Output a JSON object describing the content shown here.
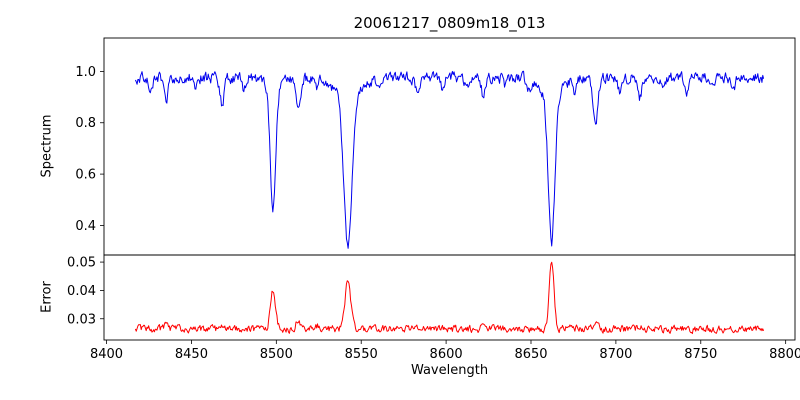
{
  "chart_data": {
    "type": "line",
    "title": "20061217_0809m18_013",
    "xlabel": "Wavelength",
    "background": "#ffffff",
    "xlim": [
      8398.5,
      8805.5
    ],
    "x_range": [
      8417,
      8787
    ],
    "n_points": 760,
    "grid": false,
    "legend": "none",
    "x_ticks": [
      {
        "value": 8400,
        "label": "8400"
      },
      {
        "value": 8450,
        "label": "8450"
      },
      {
        "value": 8500,
        "label": "8500"
      },
      {
        "value": 8550,
        "label": "8550"
      },
      {
        "value": 8600,
        "label": "8600"
      },
      {
        "value": 8650,
        "label": "8650"
      },
      {
        "value": 8700,
        "label": "8700"
      },
      {
        "value": 8750,
        "label": "8750"
      },
      {
        "value": 8800,
        "label": "8800"
      }
    ],
    "panels": [
      {
        "name": "spectrum",
        "ylabel": "Spectrum",
        "color": "#0000ee",
        "ylim": [
          0.285,
          1.13
        ],
        "y_ticks": [
          {
            "value": 0.4,
            "label": "0.4"
          },
          {
            "value": 0.6,
            "label": "0.6"
          },
          {
            "value": 0.8,
            "label": "0.8"
          },
          {
            "value": 1.0,
            "label": "1.0"
          }
        ],
        "baseline": 0.975,
        "noise_amplitude": 0.038,
        "seed": 11,
        "absorption_lines": [
          {
            "center": 8498.0,
            "depth": 0.46,
            "sigma": 1.6
          },
          {
            "center": 8498.0,
            "depth": 0.04,
            "sigma": 5.0
          },
          {
            "center": 8542.1,
            "depth": 0.57,
            "sigma": 2.3
          },
          {
            "center": 8542.1,
            "depth": 0.08,
            "sigma": 7.0
          },
          {
            "center": 8662.1,
            "depth": 0.57,
            "sigma": 1.9
          },
          {
            "center": 8662.1,
            "depth": 0.07,
            "sigma": 6.0
          },
          {
            "center": 8426,
            "depth": 0.06,
            "sigma": 1.2
          },
          {
            "center": 8435,
            "depth": 0.09,
            "sigma": 1.2
          },
          {
            "center": 8452,
            "depth": 0.04,
            "sigma": 1.0
          },
          {
            "center": 8468,
            "depth": 0.1,
            "sigma": 1.3
          },
          {
            "center": 8481,
            "depth": 0.05,
            "sigma": 1.0
          },
          {
            "center": 8513,
            "depth": 0.11,
            "sigma": 1.3
          },
          {
            "center": 8524,
            "depth": 0.05,
            "sigma": 1.0
          },
          {
            "center": 8560,
            "depth": 0.04,
            "sigma": 1.0
          },
          {
            "center": 8583,
            "depth": 0.05,
            "sigma": 1.2
          },
          {
            "center": 8598,
            "depth": 0.05,
            "sigma": 1.0
          },
          {
            "center": 8612,
            "depth": 0.04,
            "sigma": 1.0
          },
          {
            "center": 8622,
            "depth": 0.07,
            "sigma": 1.2
          },
          {
            "center": 8635,
            "depth": 0.04,
            "sigma": 1.0
          },
          {
            "center": 8649,
            "depth": 0.04,
            "sigma": 1.0
          },
          {
            "center": 8676,
            "depth": 0.05,
            "sigma": 1.0
          },
          {
            "center": 8688,
            "depth": 0.19,
            "sigma": 1.4
          },
          {
            "center": 8702,
            "depth": 0.05,
            "sigma": 1.0
          },
          {
            "center": 8714,
            "depth": 0.08,
            "sigma": 1.2
          },
          {
            "center": 8728,
            "depth": 0.04,
            "sigma": 1.0
          },
          {
            "center": 8742,
            "depth": 0.05,
            "sigma": 1.1
          },
          {
            "center": 8758,
            "depth": 0.04,
            "sigma": 1.0
          },
          {
            "center": 8769,
            "depth": 0.05,
            "sigma": 1.0
          }
        ]
      },
      {
        "name": "error",
        "ylabel": "Error",
        "color": "#ff0000",
        "ylim": [
          0.0225,
          0.0525
        ],
        "y_ticks": [
          {
            "value": 0.03,
            "label": "0.03"
          },
          {
            "value": 0.04,
            "label": "0.04"
          },
          {
            "value": 0.05,
            "label": "0.05"
          }
        ],
        "baseline": 0.0264,
        "noise_amplitude": 0.0022,
        "seed": 23,
        "peaks": [
          {
            "center": 8498.0,
            "height": 0.014,
            "sigma": 1.5
          },
          {
            "center": 8542.1,
            "height": 0.0165,
            "sigma": 1.7
          },
          {
            "center": 8662.1,
            "height": 0.0238,
            "sigma": 1.4
          },
          {
            "center": 8435,
            "height": 0.0013,
            "sigma": 1.2
          },
          {
            "center": 8468,
            "height": 0.0012,
            "sigma": 1.2
          },
          {
            "center": 8513,
            "height": 0.0035,
            "sigma": 1.2
          },
          {
            "center": 8524,
            "height": 0.001,
            "sigma": 1.0
          },
          {
            "center": 8583,
            "height": 0.0008,
            "sigma": 1.0
          },
          {
            "center": 8622,
            "height": 0.001,
            "sigma": 1.0
          },
          {
            "center": 8688,
            "height": 0.0022,
            "sigma": 1.3
          },
          {
            "center": 8714,
            "height": 0.0012,
            "sigma": 1.2
          },
          {
            "center": 8742,
            "height": 0.0008,
            "sigma": 1.0
          }
        ]
      }
    ]
  }
}
